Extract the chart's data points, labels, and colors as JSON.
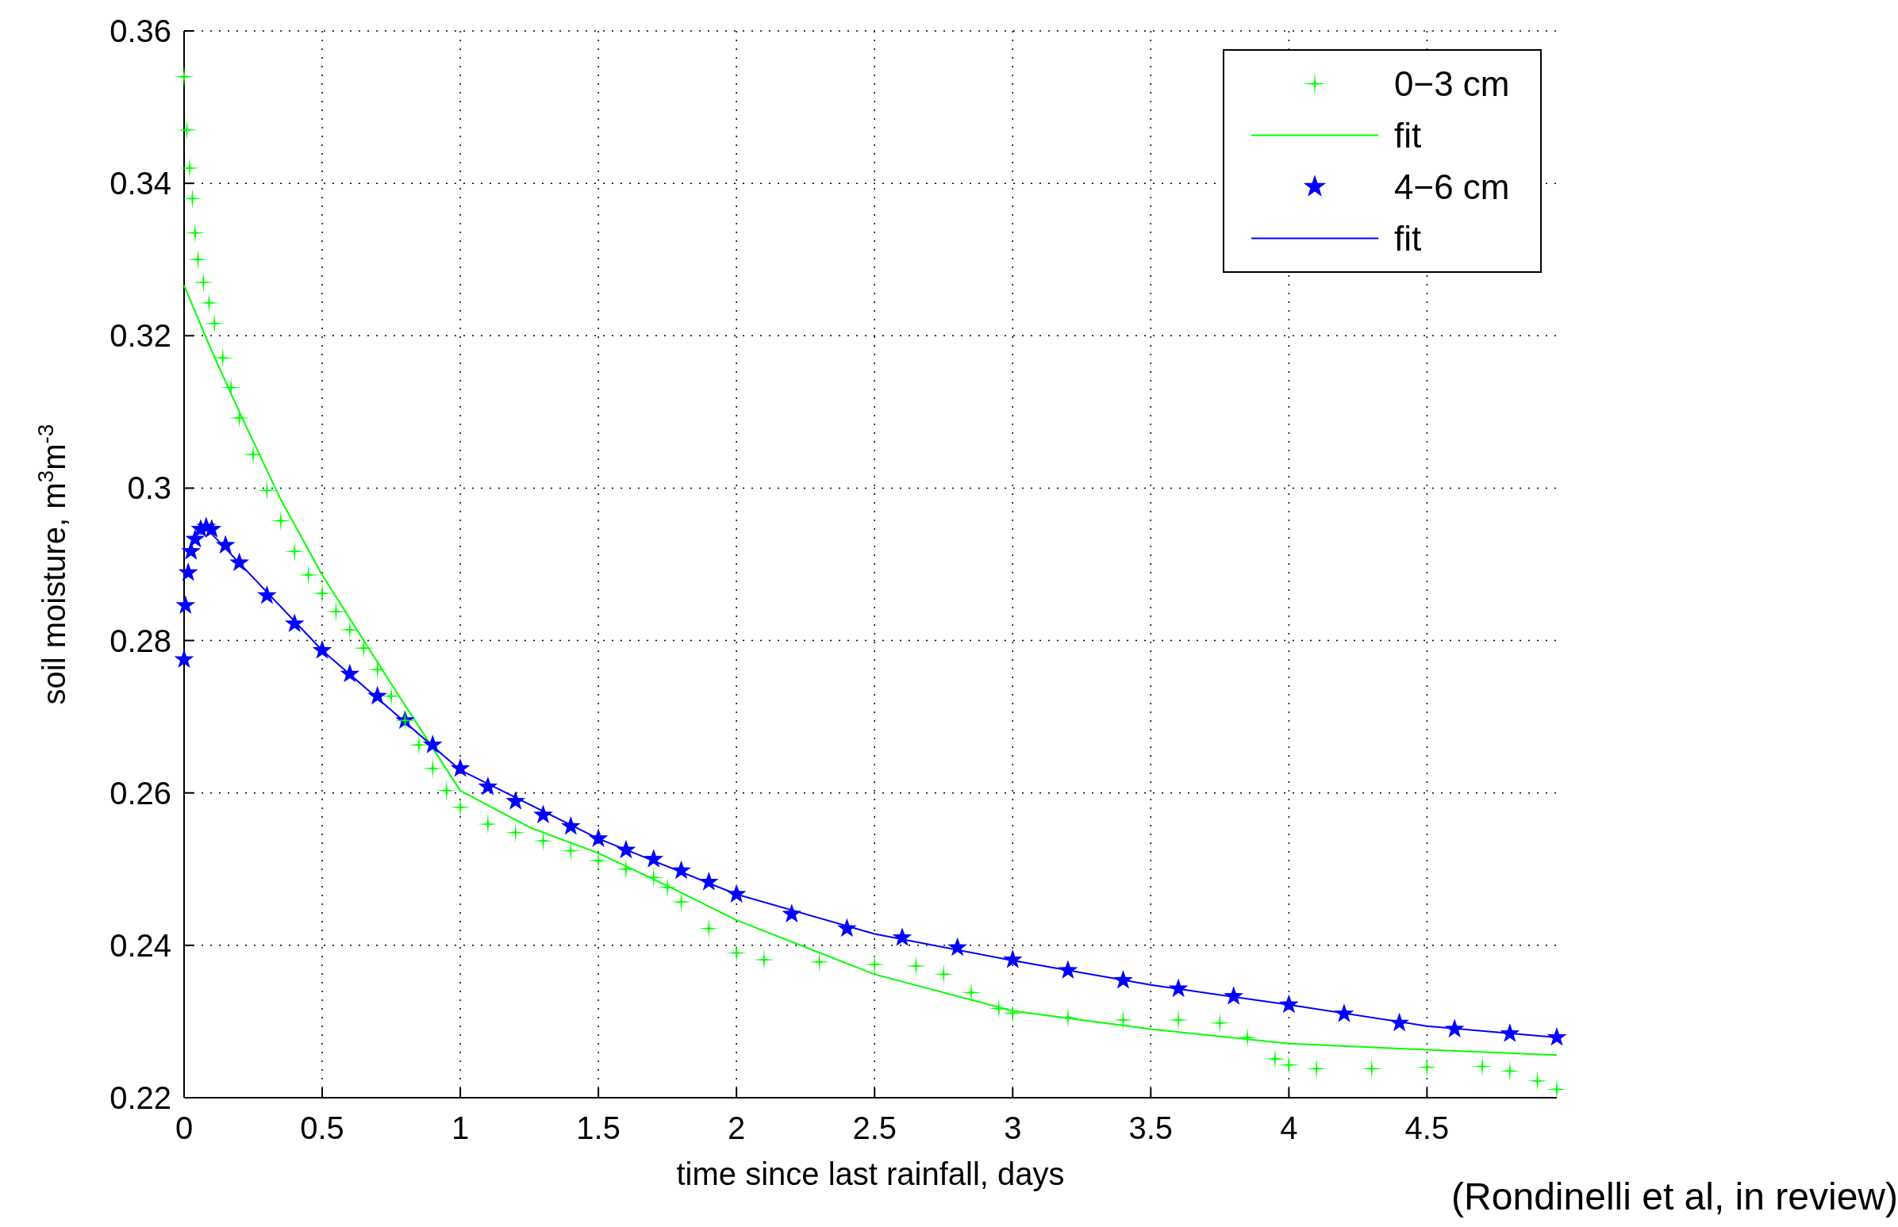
{
  "chart_data": {
    "type": "scatter",
    "xlabel": "time since last rainfall, days",
    "ylabel": "soil moisture, m$^{3}$m$^{-3}$",
    "annotations": [
      "(Rondinelli et al, in review)"
    ],
    "xlim": [
      0,
      4.97
    ],
    "ylim": [
      0.22,
      0.36
    ],
    "xticks": [
      0,
      0.5,
      1,
      1.5,
      2,
      2.5,
      3,
      3.5,
      4,
      4.5
    ],
    "yticks": [
      0.22,
      0.24,
      0.26,
      0.28,
      0.3,
      0.32,
      0.34,
      0.36
    ],
    "grid": true,
    "legend": "top right",
    "series": [
      {
        "name": "0−3 cm",
        "marker": "cross",
        "color": "#00ff00",
        "x": [
          0,
          0.01,
          0.02,
          0.03,
          0.04,
          0.05,
          0.07,
          0.09,
          0.11,
          0.14,
          0.17,
          0.2,
          0.25,
          0.3,
          0.35,
          0.4,
          0.45,
          0.5,
          0.55,
          0.6,
          0.65,
          0.7,
          0.75,
          0.8,
          0.85,
          0.9,
          0.95,
          1,
          1.1,
          1.2,
          1.3,
          1.4,
          1.5,
          1.6,
          1.7,
          1.75,
          1.8,
          1.9,
          2,
          2.1,
          2.3,
          2.5,
          2.65,
          2.75,
          2.85,
          2.95,
          3,
          3.2,
          3.4,
          3.6,
          3.75,
          3.85,
          3.95,
          4,
          4.1,
          4.3,
          4.5,
          4.7,
          4.8,
          4.9,
          4.97
        ],
        "values": [
          0.354,
          0.347,
          0.342,
          0.338,
          0.3335,
          0.33,
          0.327,
          0.3243,
          0.3216,
          0.3171,
          0.3132,
          0.3092,
          0.3044,
          0.2997,
          0.2957,
          0.2917,
          0.2886,
          0.2862,
          0.2838,
          0.2814,
          0.279,
          0.2762,
          0.2727,
          0.2695,
          0.2663,
          0.2632,
          0.2603,
          0.2581,
          0.2559,
          0.2548,
          0.2537,
          0.2524,
          0.2511,
          0.25,
          0.2489,
          0.2476,
          0.2457,
          0.2422,
          0.239,
          0.2381,
          0.2378,
          0.2375,
          0.2373,
          0.2362,
          0.2338,
          0.2317,
          0.2311,
          0.2305,
          0.2302,
          0.2302,
          0.2298,
          0.2279,
          0.2251,
          0.2243,
          0.2238,
          0.2238,
          0.224,
          0.2241,
          0.2235,
          0.2222,
          0.2211
        ]
      },
      {
        "name": "fit",
        "type": "line",
        "color": "#00ff00",
        "x": [
          0,
          0.1,
          0.2,
          0.35,
          0.5,
          0.75,
          1,
          1.25,
          1.5,
          1.75,
          2,
          2.5,
          3,
          3.5,
          4,
          4.5,
          4.97
        ],
        "values": [
          0.3266,
          0.318,
          0.31,
          0.2985,
          0.2886,
          0.2743,
          0.2603,
          0.2555,
          0.2521,
          0.2478,
          0.2433,
          0.2362,
          0.2314,
          0.229,
          0.2271,
          0.2263,
          0.2256
        ]
      },
      {
        "name": "4−6 cm",
        "marker": "star",
        "color": "#0000ff",
        "x": [
          0,
          0.005,
          0.015,
          0.025,
          0.04,
          0.06,
          0.08,
          0.1,
          0.15,
          0.2,
          0.3,
          0.4,
          0.5,
          0.6,
          0.7,
          0.8,
          0.9,
          1,
          1.1,
          1.2,
          1.3,
          1.4,
          1.5,
          1.6,
          1.7,
          1.8,
          1.9,
          2,
          2.2,
          2.4,
          2.6,
          2.8,
          3,
          3.2,
          3.4,
          3.6,
          3.8,
          4,
          4.2,
          4.4,
          4.6,
          4.8,
          4.97
        ],
        "values": [
          0.2775,
          0.2846,
          0.2889,
          0.2917,
          0.2933,
          0.2946,
          0.2949,
          0.2946,
          0.2925,
          0.2902,
          0.2859,
          0.2822,
          0.2787,
          0.2756,
          0.2727,
          0.2695,
          0.2663,
          0.2632,
          0.2608,
          0.2589,
          0.2571,
          0.2556,
          0.254,
          0.2525,
          0.2513,
          0.2498,
          0.2483,
          0.2467,
          0.2441,
          0.2422,
          0.241,
          0.2397,
          0.2381,
          0.2367,
          0.2354,
          0.2343,
          0.2333,
          0.2322,
          0.231,
          0.2298,
          0.229,
          0.2284,
          0.2279
        ]
      },
      {
        "name": "fit",
        "type": "line",
        "color": "#0000ff",
        "x": [
          0.1,
          0.5,
          1,
          1.5,
          2,
          2.5,
          3,
          3.5,
          4,
          4.5,
          4.97
        ],
        "values": [
          0.294,
          0.2787,
          0.263,
          0.254,
          0.2467,
          0.2415,
          0.238,
          0.2348,
          0.2322,
          0.2294,
          0.2279
        ]
      }
    ]
  }
}
